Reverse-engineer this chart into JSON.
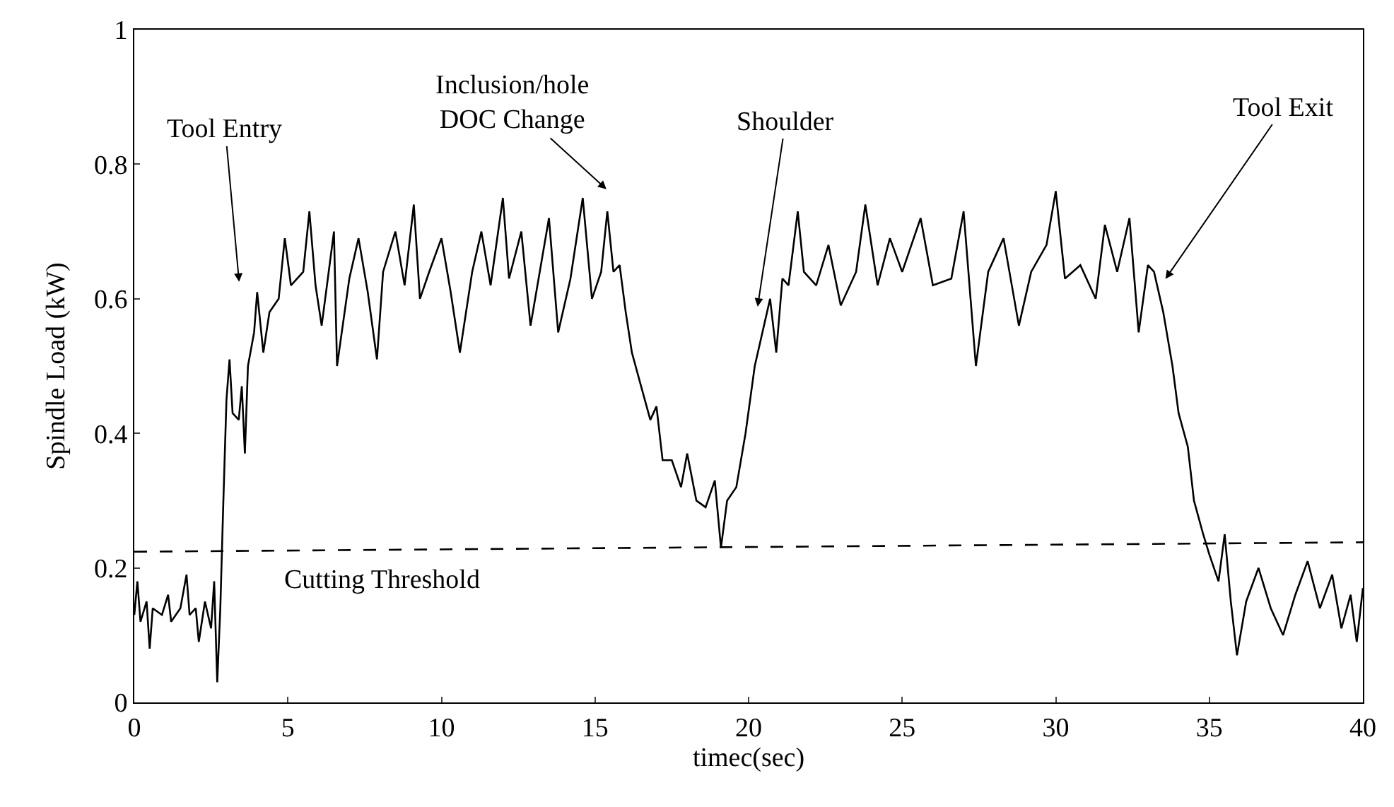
{
  "chart_data": {
    "type": "line",
    "xlabel": "timec(sec)",
    "ylabel": "Spindle Load (kW)",
    "xlim": [
      0,
      40
    ],
    "xticks": [
      0,
      5,
      10,
      15,
      20,
      25,
      30,
      35,
      40
    ],
    "ylim": [
      0,
      1
    ],
    "yticks": [
      0,
      0.2,
      0.4,
      0.6,
      0.8,
      1
    ],
    "marker": "none",
    "line_style": "solid",
    "series": [
      {
        "color": "#000000",
        "x": [
          0,
          0.1,
          0.2,
          0.4,
          0.5,
          0.6,
          0.9,
          1.1,
          1.2,
          1.5,
          1.7,
          1.8,
          2.0,
          2.1,
          2.3,
          2.5,
          2.6,
          2.7,
          2.8,
          2.9,
          3.0,
          3.1,
          3.2,
          3.4,
          3.5,
          3.6,
          3.7,
          3.9,
          4.0,
          4.2,
          4.4,
          4.7,
          4.9,
          5.1,
          5.5,
          5.7,
          5.9,
          6.1,
          6.3,
          6.5,
          6.6,
          7.0,
          7.3,
          7.6,
          7.9,
          8.1,
          8.5,
          8.8,
          9.1,
          9.3,
          9.6,
          10.0,
          10.3,
          10.6,
          11.0,
          11.3,
          11.6,
          12.0,
          12.2,
          12.6,
          12.9,
          13.2,
          13.5,
          13.8,
          14.2,
          14.6,
          14.9,
          15.2,
          15.4,
          15.6,
          15.8,
          16.0,
          16.2,
          16.5,
          16.8,
          17.0,
          17.2,
          17.5,
          17.8,
          18.0,
          18.3,
          18.6,
          18.9,
          19.1,
          19.3,
          19.6,
          19.9,
          20.2,
          20.5,
          20.7,
          20.9,
          21.1,
          21.3,
          21.6,
          21.8,
          22.2,
          22.6,
          23.0,
          23.5,
          23.8,
          24.2,
          24.6,
          25.0,
          25.6,
          26.0,
          26.6,
          27.0,
          27.4,
          27.8,
          28.3,
          28.8,
          29.2,
          29.7,
          30.0,
          30.3,
          30.8,
          31.3,
          31.6,
          32.0,
          32.4,
          32.7,
          33.0,
          33.2,
          33.5,
          33.8,
          34.0,
          34.3,
          34.5,
          34.8,
          35.0,
          35.3,
          35.5,
          35.7,
          35.9,
          36.2,
          36.6,
          37.0,
          37.4,
          37.8,
          38.2,
          38.6,
          39.0,
          39.3,
          39.6,
          39.8,
          40.0
        ],
        "values": [
          0.13,
          0.18,
          0.12,
          0.15,
          0.08,
          0.14,
          0.13,
          0.16,
          0.12,
          0.14,
          0.19,
          0.13,
          0.14,
          0.09,
          0.15,
          0.11,
          0.18,
          0.03,
          0.14,
          0.3,
          0.45,
          0.51,
          0.43,
          0.42,
          0.47,
          0.37,
          0.5,
          0.55,
          0.61,
          0.52,
          0.58,
          0.6,
          0.69,
          0.62,
          0.64,
          0.73,
          0.62,
          0.56,
          0.63,
          0.7,
          0.5,
          0.63,
          0.69,
          0.61,
          0.51,
          0.64,
          0.7,
          0.62,
          0.74,
          0.6,
          0.64,
          0.69,
          0.61,
          0.52,
          0.64,
          0.7,
          0.62,
          0.75,
          0.63,
          0.7,
          0.56,
          0.64,
          0.72,
          0.55,
          0.63,
          0.75,
          0.6,
          0.64,
          0.73,
          0.64,
          0.65,
          0.58,
          0.52,
          0.47,
          0.42,
          0.44,
          0.36,
          0.36,
          0.32,
          0.37,
          0.3,
          0.29,
          0.33,
          0.23,
          0.3,
          0.32,
          0.4,
          0.5,
          0.56,
          0.6,
          0.52,
          0.63,
          0.62,
          0.73,
          0.64,
          0.62,
          0.68,
          0.59,
          0.64,
          0.74,
          0.62,
          0.69,
          0.64,
          0.72,
          0.62,
          0.63,
          0.73,
          0.5,
          0.64,
          0.69,
          0.56,
          0.64,
          0.68,
          0.76,
          0.63,
          0.65,
          0.6,
          0.71,
          0.64,
          0.72,
          0.55,
          0.65,
          0.64,
          0.58,
          0.5,
          0.43,
          0.38,
          0.3,
          0.25,
          0.22,
          0.18,
          0.25,
          0.15,
          0.07,
          0.15,
          0.2,
          0.14,
          0.1,
          0.16,
          0.21,
          0.14,
          0.19,
          0.11,
          0.16,
          0.09,
          0.17
        ]
      },
      {
        "color": "#000000",
        "type": "line",
        "line_style": "dashed",
        "x": [
          0,
          40
        ],
        "values": [
          0.224,
          0.238
        ]
      }
    ],
    "annotations": [
      "Tool Entry",
      "Inclusion/hole\nDOC Change",
      "Shoulder",
      "Tool Exit",
      "Cutting Threshold"
    ]
  }
}
